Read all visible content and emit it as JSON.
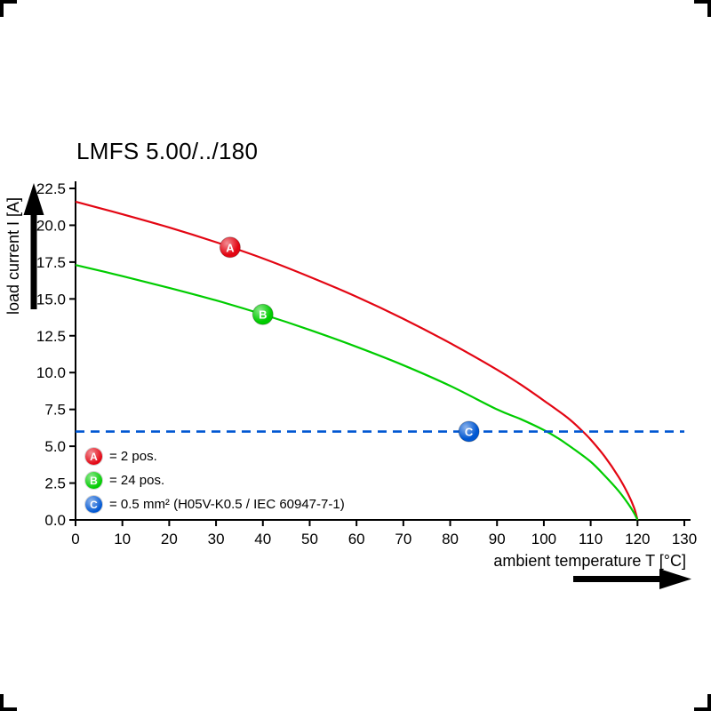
{
  "title": "LMFS 5.00/../180",
  "chart_data": {
    "type": "line",
    "title": "LMFS 5.00/../180",
    "xlabel": "ambient temperature T [°C]",
    "ylabel": "load current I [A]",
    "xlim": [
      0,
      130
    ],
    "ylim": [
      0,
      22.5
    ],
    "grid": false,
    "legend_position": "inside bottom-left",
    "axis_color": "#000000",
    "xticks": {
      "values": [
        0,
        10,
        20,
        30,
        40,
        50,
        60,
        70,
        80,
        90,
        100,
        110,
        120,
        130
      ],
      "labels": [
        "0",
        "10",
        "20",
        "30",
        "40",
        "50",
        "60",
        "70",
        "80",
        "90",
        "100",
        "110",
        "120",
        "130"
      ]
    },
    "yticks": {
      "values": [
        0,
        2.5,
        5,
        7.5,
        10,
        12.5,
        15,
        17.5,
        20,
        22.5
      ],
      "labels": [
        "0.0",
        "2.5",
        "5.0",
        "7.5",
        "10.0",
        "12.5",
        "15.0",
        "17.5",
        "20.0",
        "22.5"
      ]
    },
    "series": [
      {
        "id": "A",
        "legend": "= 2 pos.",
        "color": "#e30613",
        "line_style": "solid",
        "marker": {
          "x": 33,
          "y": 18.5,
          "label": "A"
        },
        "points": [
          [
            0,
            21.6
          ],
          [
            10,
            20.75
          ],
          [
            20,
            19.85
          ],
          [
            30,
            18.85
          ],
          [
            40,
            17.75
          ],
          [
            50,
            16.5
          ],
          [
            60,
            15.15
          ],
          [
            70,
            13.65
          ],
          [
            80,
            12.0
          ],
          [
            90,
            10.2
          ],
          [
            95,
            9.2
          ],
          [
            100,
            8.1
          ],
          [
            105,
            6.95
          ],
          [
            108,
            6.1
          ],
          [
            110,
            5.45
          ],
          [
            113,
            4.3
          ],
          [
            116,
            2.9
          ],
          [
            118,
            1.75
          ],
          [
            119.3,
            0.8
          ],
          [
            120,
            0
          ]
        ]
      },
      {
        "id": "B",
        "legend": "= 24 pos.",
        "color": "#00cc00",
        "line_style": "solid",
        "marker": {
          "x": 40,
          "y": 13.95,
          "label": "B"
        },
        "points": [
          [
            0,
            17.3
          ],
          [
            10,
            16.55
          ],
          [
            20,
            15.75
          ],
          [
            30,
            14.9
          ],
          [
            40,
            13.95
          ],
          [
            50,
            12.9
          ],
          [
            60,
            11.75
          ],
          [
            70,
            10.5
          ],
          [
            80,
            9.1
          ],
          [
            90,
            7.5
          ],
          [
            95,
            6.85
          ],
          [
            100,
            6.1
          ],
          [
            103,
            5.55
          ],
          [
            106,
            4.9
          ],
          [
            110,
            3.95
          ],
          [
            113,
            3.0
          ],
          [
            116,
            1.95
          ],
          [
            118,
            1.1
          ],
          [
            119.3,
            0.45
          ],
          [
            120,
            0
          ]
        ]
      },
      {
        "id": "C",
        "legend": "= 0.5 mm² (H05V-K0.5 / IEC 60947-7-1)",
        "color": "#0057d2",
        "line_style": "dashed",
        "marker": {
          "x": 84,
          "y": 6,
          "label": "C"
        },
        "points": [
          [
            0,
            6
          ],
          [
            130,
            6
          ]
        ]
      }
    ]
  }
}
